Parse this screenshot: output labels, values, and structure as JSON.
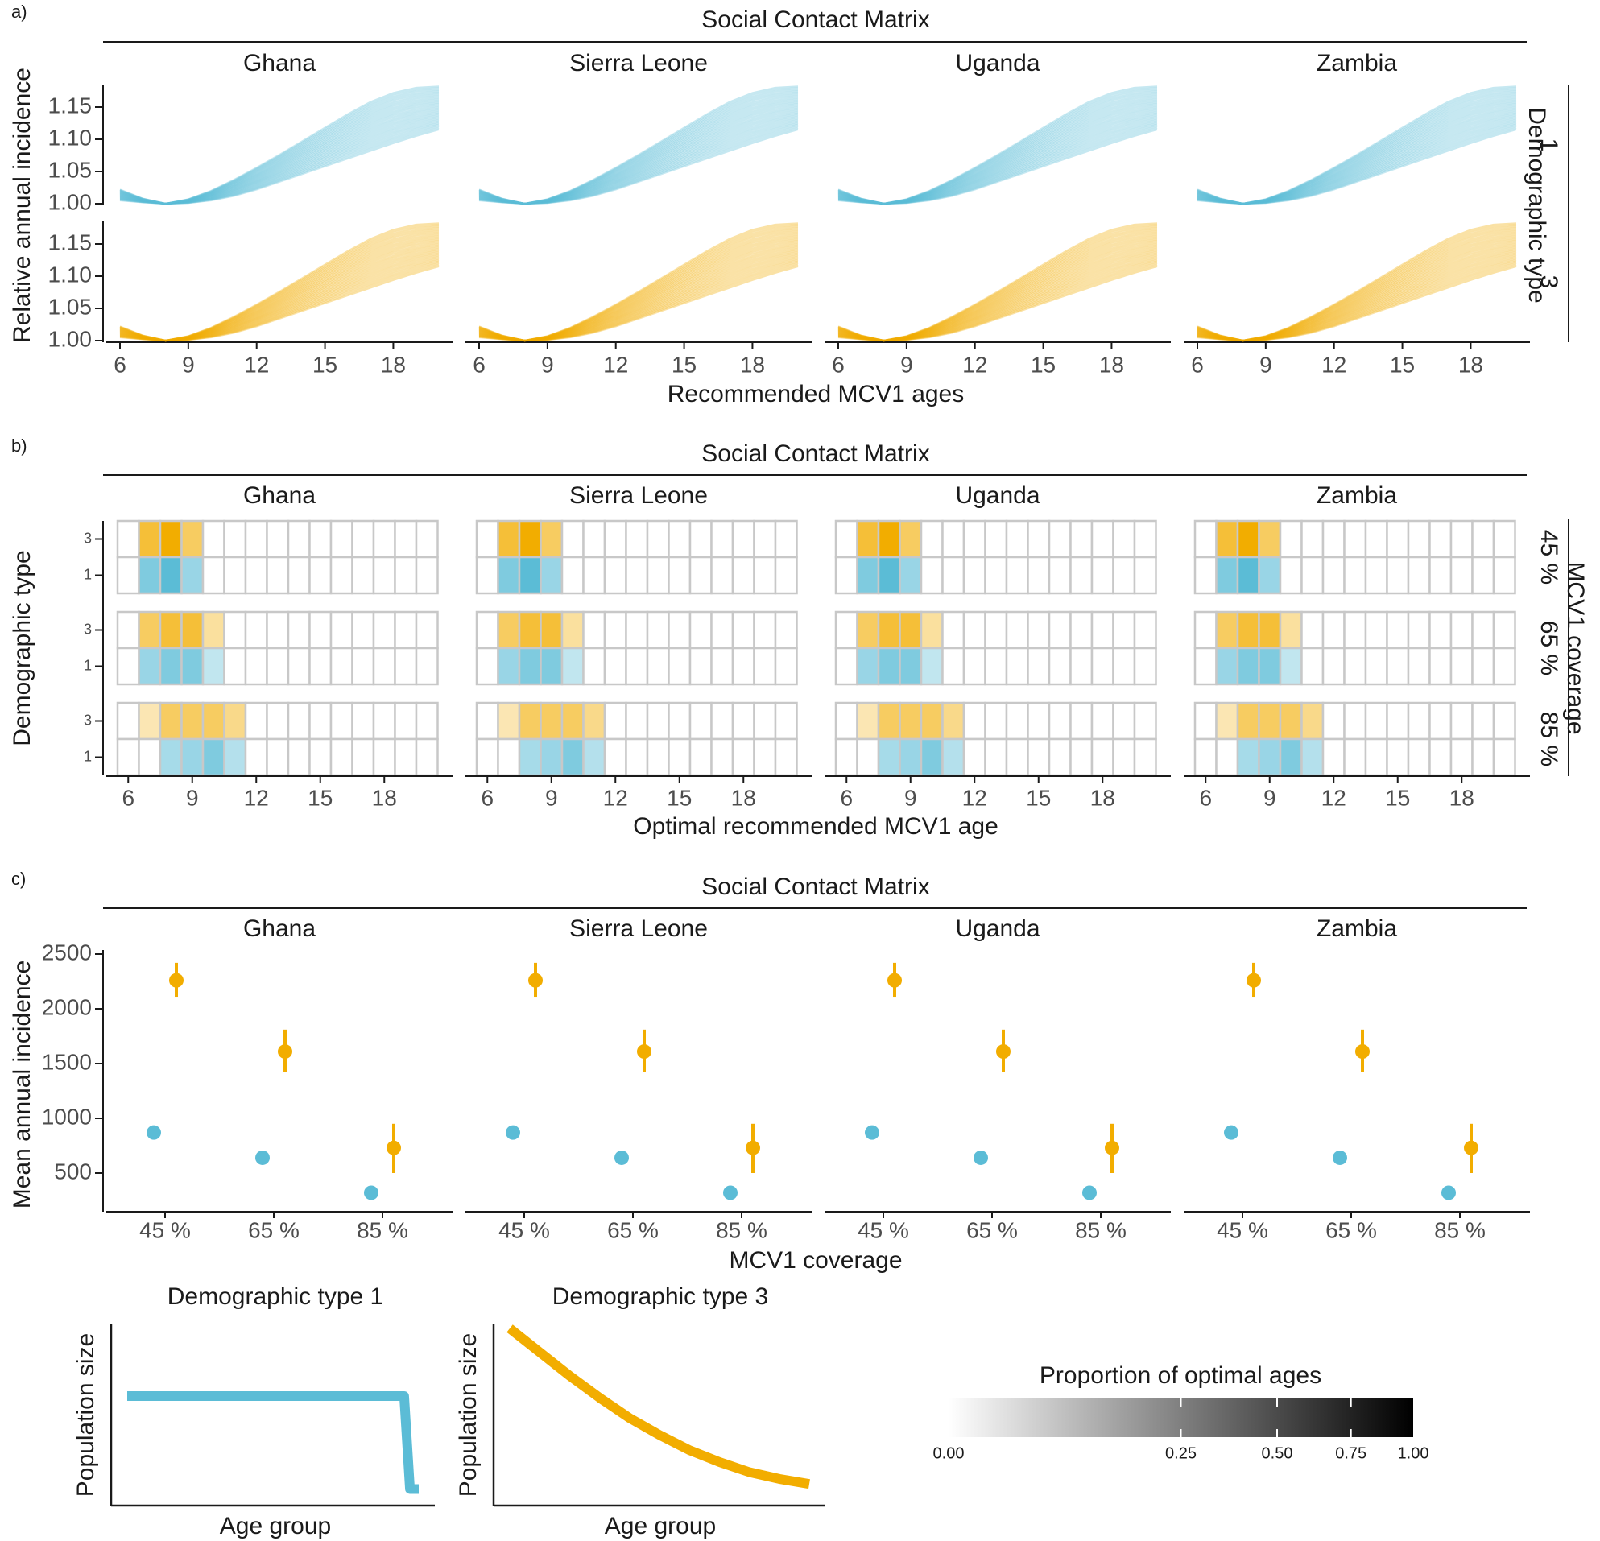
{
  "colors": {
    "blue": "#5BBCD6",
    "orange": "#F2AD00",
    "grid": "#c8c8c8",
    "axis": "#1a1a1a"
  },
  "countries": [
    "Ghana",
    "Sierra Leone",
    "Uganda",
    "Zambia"
  ],
  "chart_data": [
    {
      "panel": "a)",
      "type": "line",
      "title": "Social Contact Matrix",
      "facet_label_right": "Demographic type",
      "xlabel": "Recommended MCV1 ages",
      "ylabel": "Relative annual incidence",
      "xticks": [
        "6",
        "9",
        "12",
        "15",
        "18"
      ],
      "xlim": [
        6,
        20
      ],
      "yticks": [
        "1.00",
        "1.05",
        "1.10",
        "1.15"
      ],
      "ylim": [
        0.99,
        1.18
      ],
      "rows": [
        {
          "label": "1",
          "color": "blue",
          "series": {
            "x": [
              6,
              7,
              8,
              9,
              10,
              11,
              12,
              13,
              14,
              15,
              16,
              17,
              18,
              19,
              20
            ],
            "center": [
              1.012,
              1.004,
              1.0,
              1.004,
              1.012,
              1.024,
              1.038,
              1.054,
              1.07,
              1.087,
              1.103,
              1.119,
              1.134,
              1.148,
              1.16
            ],
            "low": [
              1.005,
              1.002,
              1.0,
              1.001,
              1.005,
              1.012,
              1.022,
              1.034,
              1.046,
              1.058,
              1.07,
              1.082,
              1.094,
              1.105,
              1.115
            ],
            "high": [
              1.022,
              1.008,
              1.0,
              1.007,
              1.02,
              1.037,
              1.056,
              1.076,
              1.097,
              1.118,
              1.139,
              1.158,
              1.172,
              1.18,
              1.182
            ]
          }
        },
        {
          "label": "3",
          "color": "orange",
          "series": {
            "x": [
              6,
              7,
              8,
              9,
              10,
              11,
              12,
              13,
              14,
              15,
              16,
              17,
              18,
              19,
              20
            ],
            "center": [
              1.012,
              1.004,
              1.0,
              1.004,
              1.012,
              1.024,
              1.038,
              1.054,
              1.07,
              1.087,
              1.103,
              1.119,
              1.134,
              1.148,
              1.16
            ],
            "low": [
              1.005,
              1.002,
              1.0,
              1.001,
              1.005,
              1.012,
              1.022,
              1.034,
              1.046,
              1.058,
              1.07,
              1.082,
              1.094,
              1.105,
              1.115
            ],
            "high": [
              1.022,
              1.008,
              1.0,
              1.007,
              1.02,
              1.037,
              1.056,
              1.076,
              1.097,
              1.118,
              1.139,
              1.158,
              1.172,
              1.18,
              1.182
            ]
          }
        }
      ],
      "n_lines_per_panel": 28
    },
    {
      "panel": "b)",
      "type": "heatmap",
      "title": "Social Contact Matrix",
      "facet_label_right": "MCV1 coverage",
      "xlabel": "Optimal recommended MCV1 age",
      "ylabel": "Demographic type",
      "xticks": [
        "6",
        "9",
        "12",
        "15",
        "18"
      ],
      "xlim": [
        6,
        20
      ],
      "row_labels": [
        "3",
        "1"
      ],
      "coverage_groups": [
        {
          "label": "45 %",
          "cells": {
            "3": {
              "7": 0.35,
              "8": 0.5,
              "9": 0.25
            },
            "1": {
              "7": 0.35,
              "8": 0.5,
              "9": 0.25
            }
          }
        },
        {
          "label": "65 %",
          "cells": {
            "3": {
              "7": 0.25,
              "8": 0.35,
              "9": 0.35,
              "10": 0.1
            },
            "1": {
              "7": 0.25,
              "8": 0.35,
              "9": 0.35,
              "10": 0.1
            }
          }
        },
        {
          "label": "85 %",
          "cells": {
            "3": {
              "7": 0.05,
              "8": 0.25,
              "9": 0.25,
              "10": 0.25,
              "11": 0.15
            },
            "1": {
              "8": 0.2,
              "9": 0.25,
              "10": 0.35,
              "11": 0.15
            }
          }
        }
      ]
    },
    {
      "panel": "c)",
      "type": "scatter",
      "title": "Social Contact Matrix",
      "xlabel": "MCV1 coverage",
      "ylabel": "Mean annual incidence",
      "categories": [
        "45 %",
        "65 %",
        "85 %"
      ],
      "yticks": [
        "500",
        "1000",
        "1500",
        "2000",
        "2500"
      ],
      "ylim": [
        200,
        2550
      ],
      "series": [
        {
          "name": "Demographic type 1",
          "color": "blue",
          "values": [
            870,
            640,
            320
          ],
          "lower": [
            870,
            640,
            320
          ],
          "upper": [
            870,
            640,
            320
          ]
        },
        {
          "name": "Demographic type 3",
          "color": "orange",
          "values": [
            2260,
            1610,
            730
          ],
          "lower": [
            2110,
            1420,
            500
          ],
          "upper": [
            2420,
            1810,
            950
          ]
        }
      ]
    },
    {
      "panel": "legend-demography",
      "type": "line",
      "plots": [
        {
          "title": "Demographic type 1",
          "xlabel": "Age group",
          "ylabel": "Population size",
          "color": "blue",
          "x": [
            0,
            0.95,
            0.97,
            1.0
          ],
          "y": [
            0.6,
            0.6,
            0.05,
            0.05
          ]
        },
        {
          "title": "Demographic type 3",
          "xlabel": "Age group",
          "ylabel": "Population size",
          "color": "orange",
          "x": [
            0,
            0.1,
            0.2,
            0.3,
            0.4,
            0.5,
            0.6,
            0.7,
            0.8,
            0.9,
            1.0
          ],
          "y": [
            1.0,
            0.86,
            0.72,
            0.59,
            0.47,
            0.37,
            0.28,
            0.21,
            0.15,
            0.11,
            0.08
          ]
        }
      ]
    },
    {
      "panel": "legend-scale",
      "type": "colorbar",
      "title": "Proportion of optimal ages",
      "ticks": [
        "0.00",
        "0.25",
        "0.50",
        "0.75",
        "1.00"
      ],
      "tick_values": [
        0,
        0.25,
        0.5,
        0.75,
        1.0
      ]
    }
  ]
}
